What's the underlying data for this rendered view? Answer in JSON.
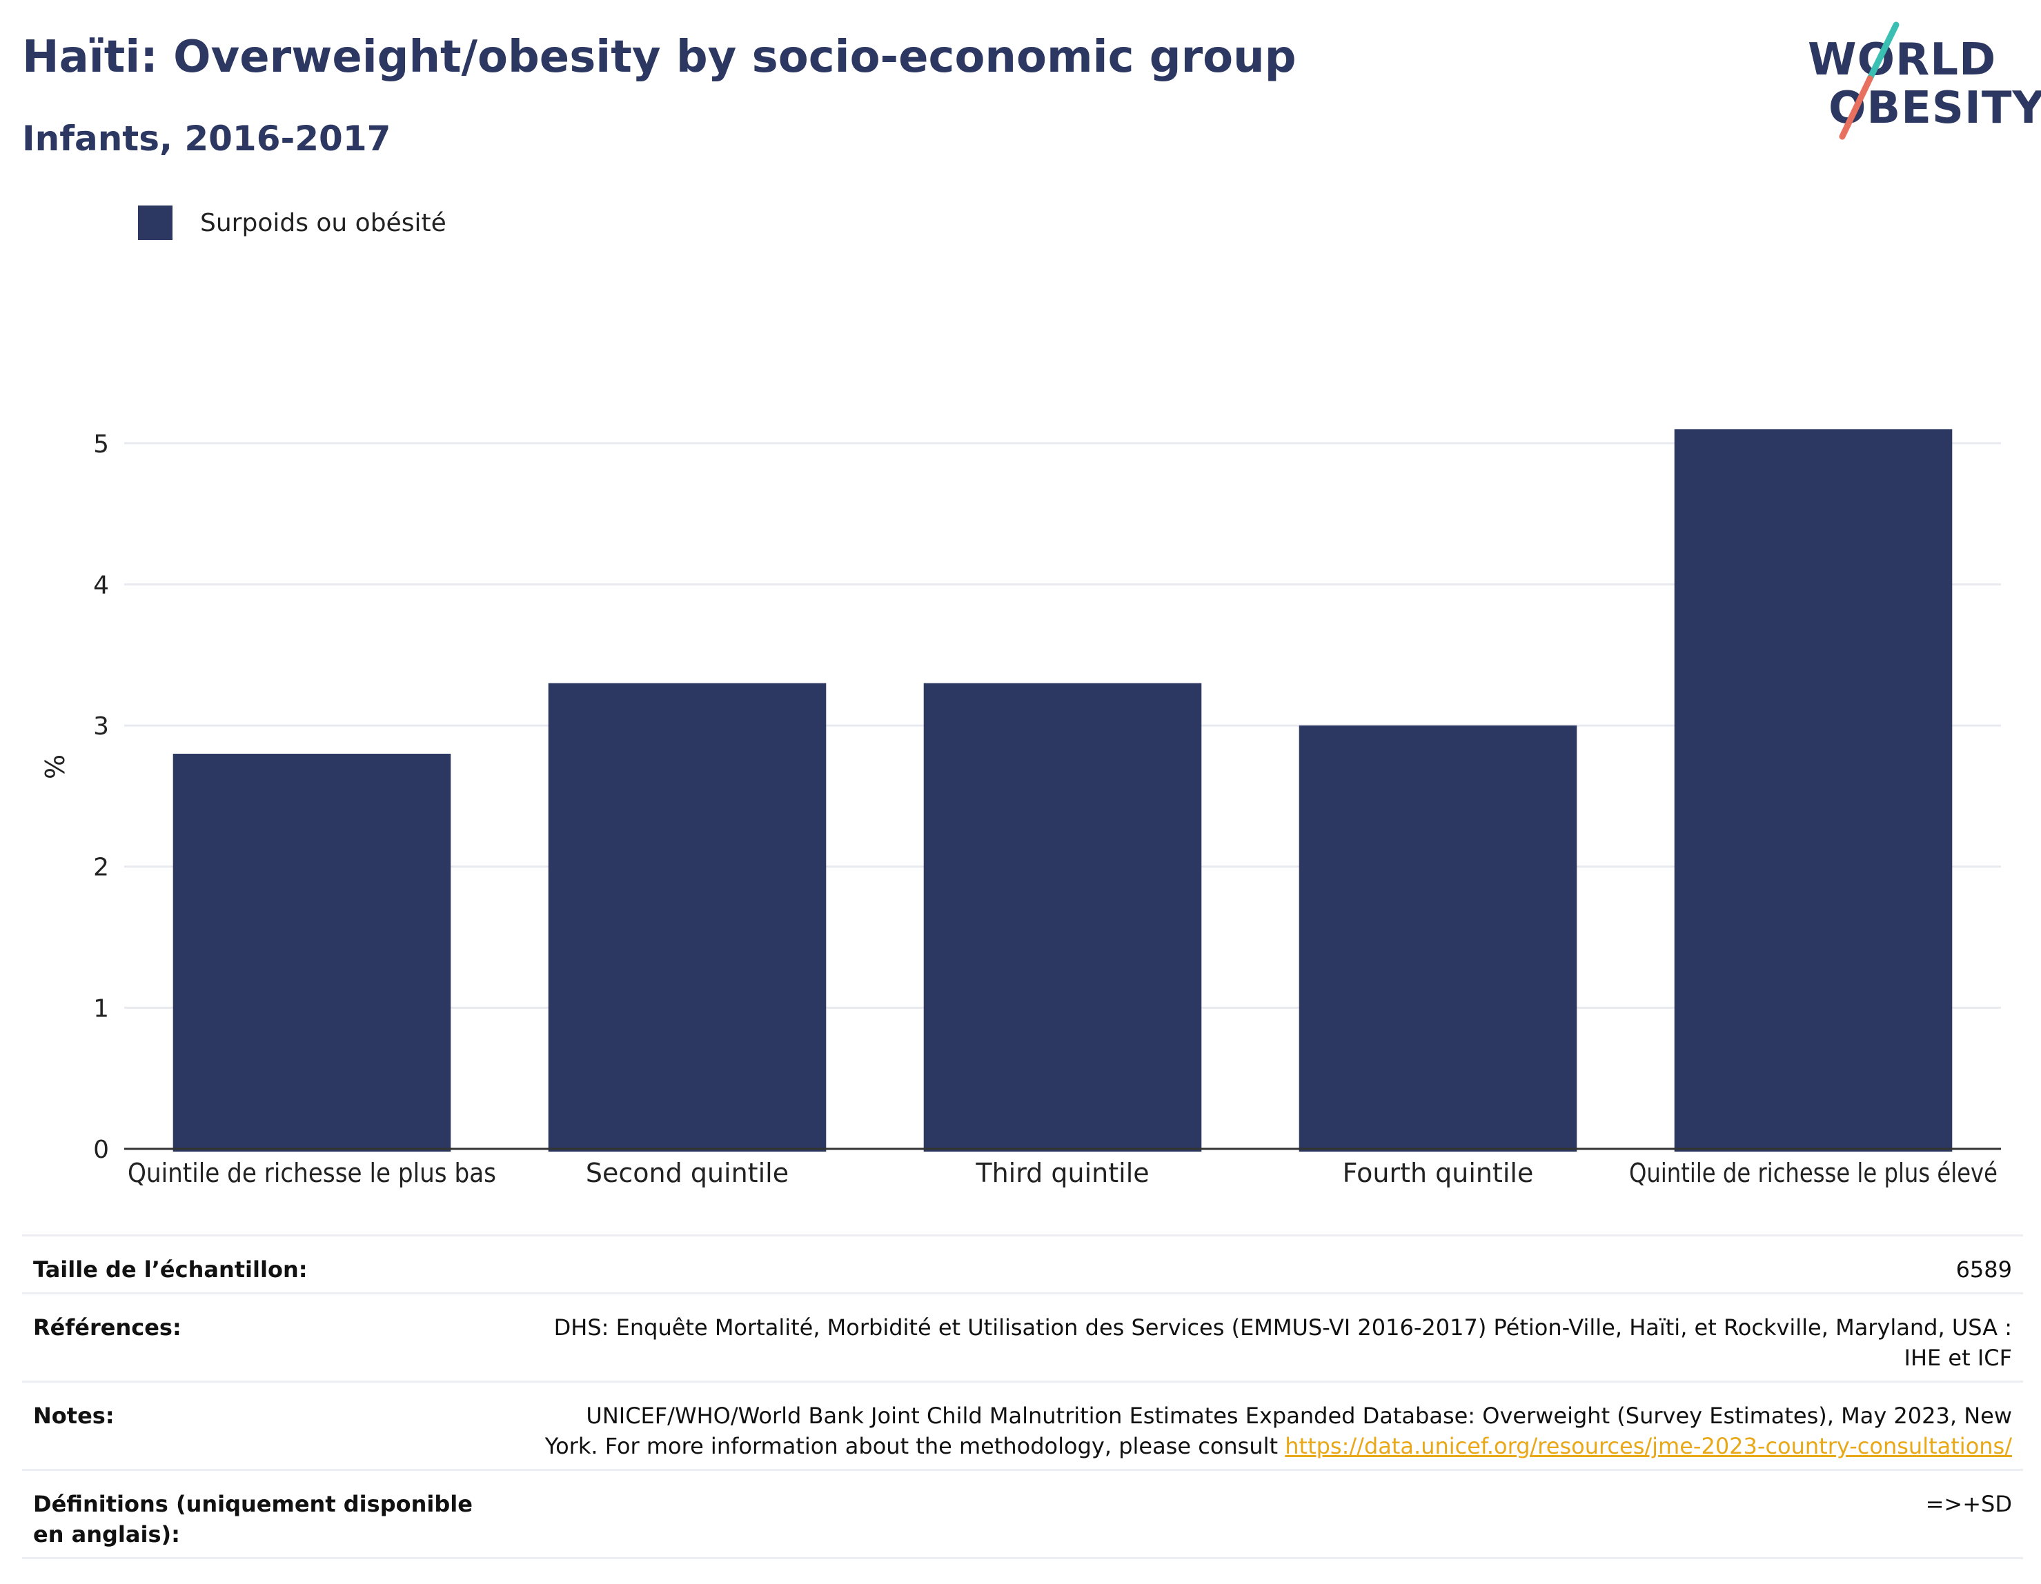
{
  "header": {
    "title": "Haïti: Overweight/obesity by socio-economic group",
    "subtitle": "Infants, 2016-2017"
  },
  "logo": {
    "line1": "WORLD",
    "line2": "OBESITY"
  },
  "colors": {
    "bar": "#2c3862",
    "title": "#2c3862",
    "logo_teal": "#3bbfb3",
    "logo_coral": "#e8705e",
    "link": "#e8a817"
  },
  "chart_data": {
    "type": "bar",
    "categories": [
      "Quintile de richesse le plus bas",
      "Second quintile",
      "Third quintile",
      "Fourth quintile",
      "Quintile de richesse le plus élevé"
    ],
    "series": [
      {
        "name": "Surpoids ou obésité",
        "values": [
          2.8,
          3.3,
          3.3,
          3.0,
          5.1
        ]
      }
    ],
    "title": "Haïti: Overweight/obesity by socio-economic group",
    "subtitle": "Infants, 2016-2017",
    "xlabel": "",
    "ylabel": "%",
    "ylim": [
      0,
      5.6
    ],
    "yticks": [
      0,
      1,
      2,
      3,
      4,
      5
    ],
    "grid": true,
    "legend": "top-left"
  },
  "meta": {
    "rows": [
      {
        "key": "Taille de l’échantillon:",
        "value": "6589"
      },
      {
        "key": "Références:",
        "value": "DHS: Enquête Mortalité, Morbidité et Utilisation des Services (EMMUS-VI 2016-2017) Pétion-Ville, Haïti, et Rockville, Maryland, USA : IHE et ICF"
      },
      {
        "key": "Notes:",
        "value": "UNICEF/WHO/World Bank Joint Child Malnutrition Estimates Expanded Database: Overweight (Survey Estimates), May 2023, New York. For more information about the methodology, please consult ",
        "link": "https://data.unicef.org/resources/jme-2023-country-consultations/"
      },
      {
        "key": "Définitions (uniquement disponible en anglais):",
        "value": "=>+SD"
      }
    ]
  }
}
